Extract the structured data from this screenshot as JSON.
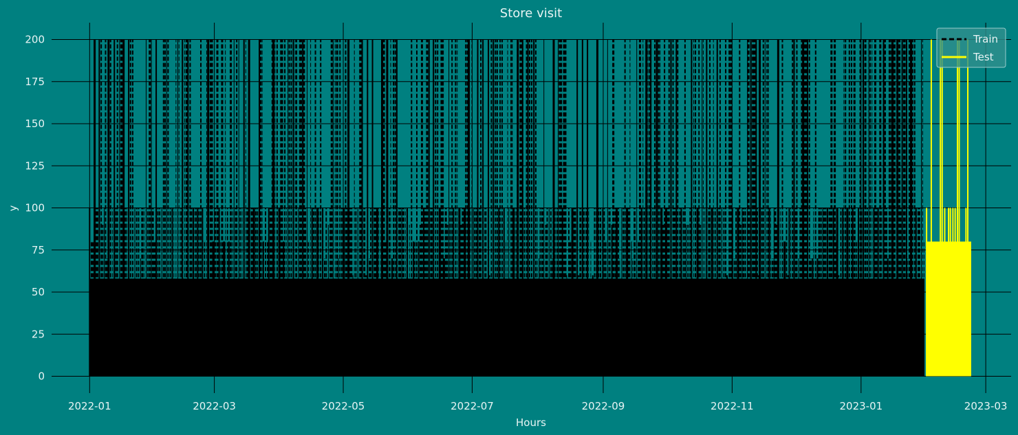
{
  "colors": {
    "background": "#008080",
    "train": "#000000",
    "test": "#ffff00",
    "grid": "#000000",
    "text": "#e8f4f4"
  },
  "chart_data": {
    "type": "line",
    "title": "Store visit",
    "xlabel": "Hours",
    "ylabel": "y",
    "xlim": [
      "2021-12-14",
      "2023-03-13"
    ],
    "ylim": [
      -10,
      210
    ],
    "grid": true,
    "legend_position": "top-right",
    "x_ticks": [
      "2022-01",
      "2022-03",
      "2022-05",
      "2022-07",
      "2022-09",
      "2022-11",
      "2023-01",
      "2023-03"
    ],
    "y_ticks": [
      0,
      25,
      50,
      75,
      100,
      125,
      150,
      175,
      200
    ],
    "series": [
      {
        "name": "Train",
        "style": "dashed",
        "color": "#000000",
        "x_range": [
          "2022-01-01",
          "2023-01-31"
        ],
        "min": 0,
        "max": 200
      },
      {
        "name": "Test",
        "style": "solid",
        "color": "#ffff00",
        "x_range": [
          "2023-02-01",
          "2023-02-22"
        ],
        "min": 0,
        "max": 200
      }
    ]
  }
}
